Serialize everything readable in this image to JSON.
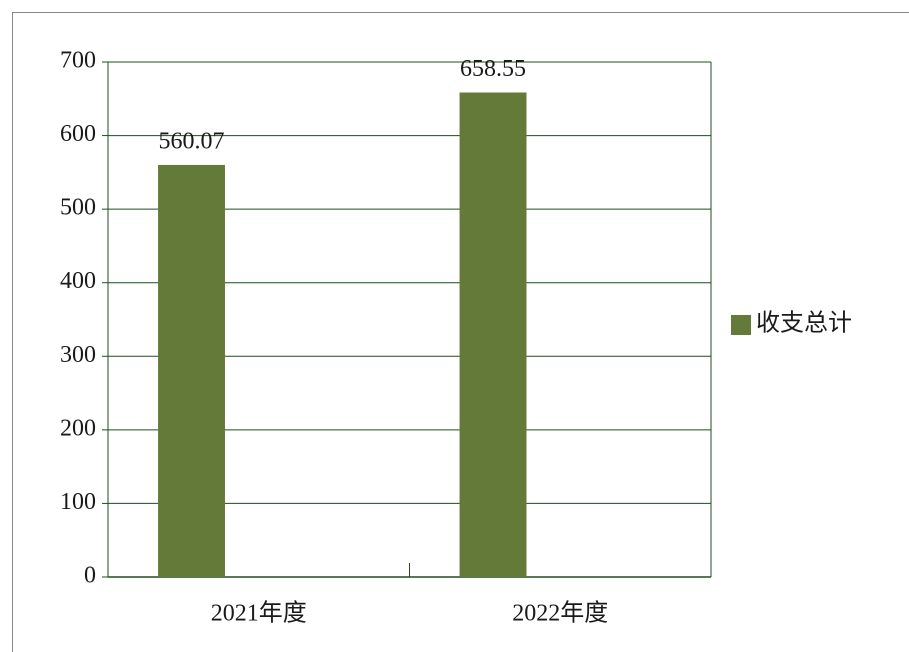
{
  "chart_data": {
    "type": "bar",
    "categories": [
      "2021年度",
      "2022年度"
    ],
    "series": [
      {
        "name": "收支总计",
        "color": "#647a38",
        "values": [
          560.07,
          658.55
        ]
      }
    ],
    "ylim": [
      0,
      700
    ],
    "yticks": [
      0,
      100,
      200,
      300,
      400,
      500,
      600,
      700
    ],
    "grid": true,
    "legend": "right"
  }
}
